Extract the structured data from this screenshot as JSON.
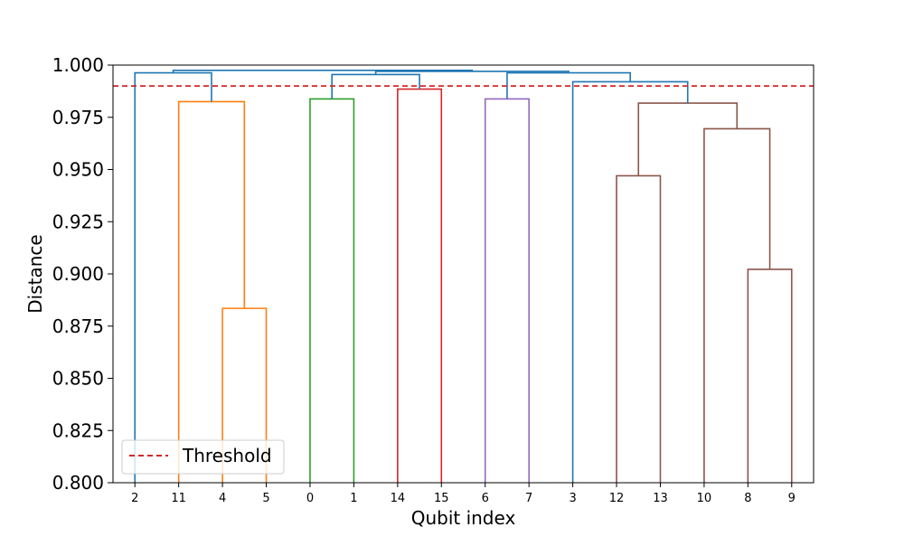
{
  "chart_data": {
    "type": "dendrogram",
    "title": "",
    "xlabel": "Qubit index",
    "ylabel": "Distance",
    "ylim": [
      0.8,
      1.0
    ],
    "yticks": [
      "0.800",
      "0.825",
      "0.850",
      "0.875",
      "0.900",
      "0.925",
      "0.950",
      "0.975",
      "1.000"
    ],
    "leaf_order": [
      "2",
      "11",
      "4",
      "5",
      "0",
      "1",
      "14",
      "15",
      "6",
      "7",
      "3",
      "12",
      "13",
      "10",
      "8",
      "9"
    ],
    "threshold": {
      "value": 0.99,
      "label": "Threshold",
      "color": "#d62728"
    },
    "legend_position": "lower-left",
    "grid": false,
    "merges": [
      {
        "left": "4",
        "right": "5",
        "height": 0.8835,
        "color": "#ff7f0e"
      },
      {
        "left": "11",
        "right": "4+5",
        "height": 0.9825,
        "color": "#ff7f0e"
      },
      {
        "left": "0",
        "right": "1",
        "height": 0.9838,
        "color": "#2ca02c"
      },
      {
        "left": "14",
        "right": "15",
        "height": 0.9885,
        "color": "#d62728"
      },
      {
        "left": "6",
        "right": "7",
        "height": 0.9838,
        "color": "#9467bd"
      },
      {
        "left": "12",
        "right": "13",
        "height": 0.947,
        "color": "#8c564b"
      },
      {
        "left": "8",
        "right": "9",
        "height": 0.9022,
        "color": "#8c564b"
      },
      {
        "left": "10",
        "right": "8+9",
        "height": 0.9695,
        "color": "#8c564b"
      },
      {
        "left": "12+13",
        "right": "10+8+9",
        "height": 0.9818,
        "color": "#8c564b"
      },
      {
        "left": "3",
        "right": "12+13+10+8+9",
        "height": 0.992,
        "color": "#1f77b4"
      },
      {
        "left": "2",
        "right": "11+4+5",
        "height": 0.9963,
        "color": "#1f77b4"
      },
      {
        "left": "0+1",
        "right": "14+15",
        "height": 0.9955,
        "color": "#1f77b4"
      },
      {
        "left": "6+7",
        "right": "3+12+13+10+8+9",
        "height": 0.9963,
        "color": "#1f77b4"
      },
      {
        "left": "0+1+14+15",
        "right": "6+7+3+12+13+10+8+9",
        "height": 0.997,
        "color": "#1f77b4"
      },
      {
        "left": "2+11+4+5",
        "right": "0+1+14+15+6+7+3+12+13+10+8+9",
        "height": 0.9975,
        "color": "#1f77b4"
      }
    ]
  }
}
